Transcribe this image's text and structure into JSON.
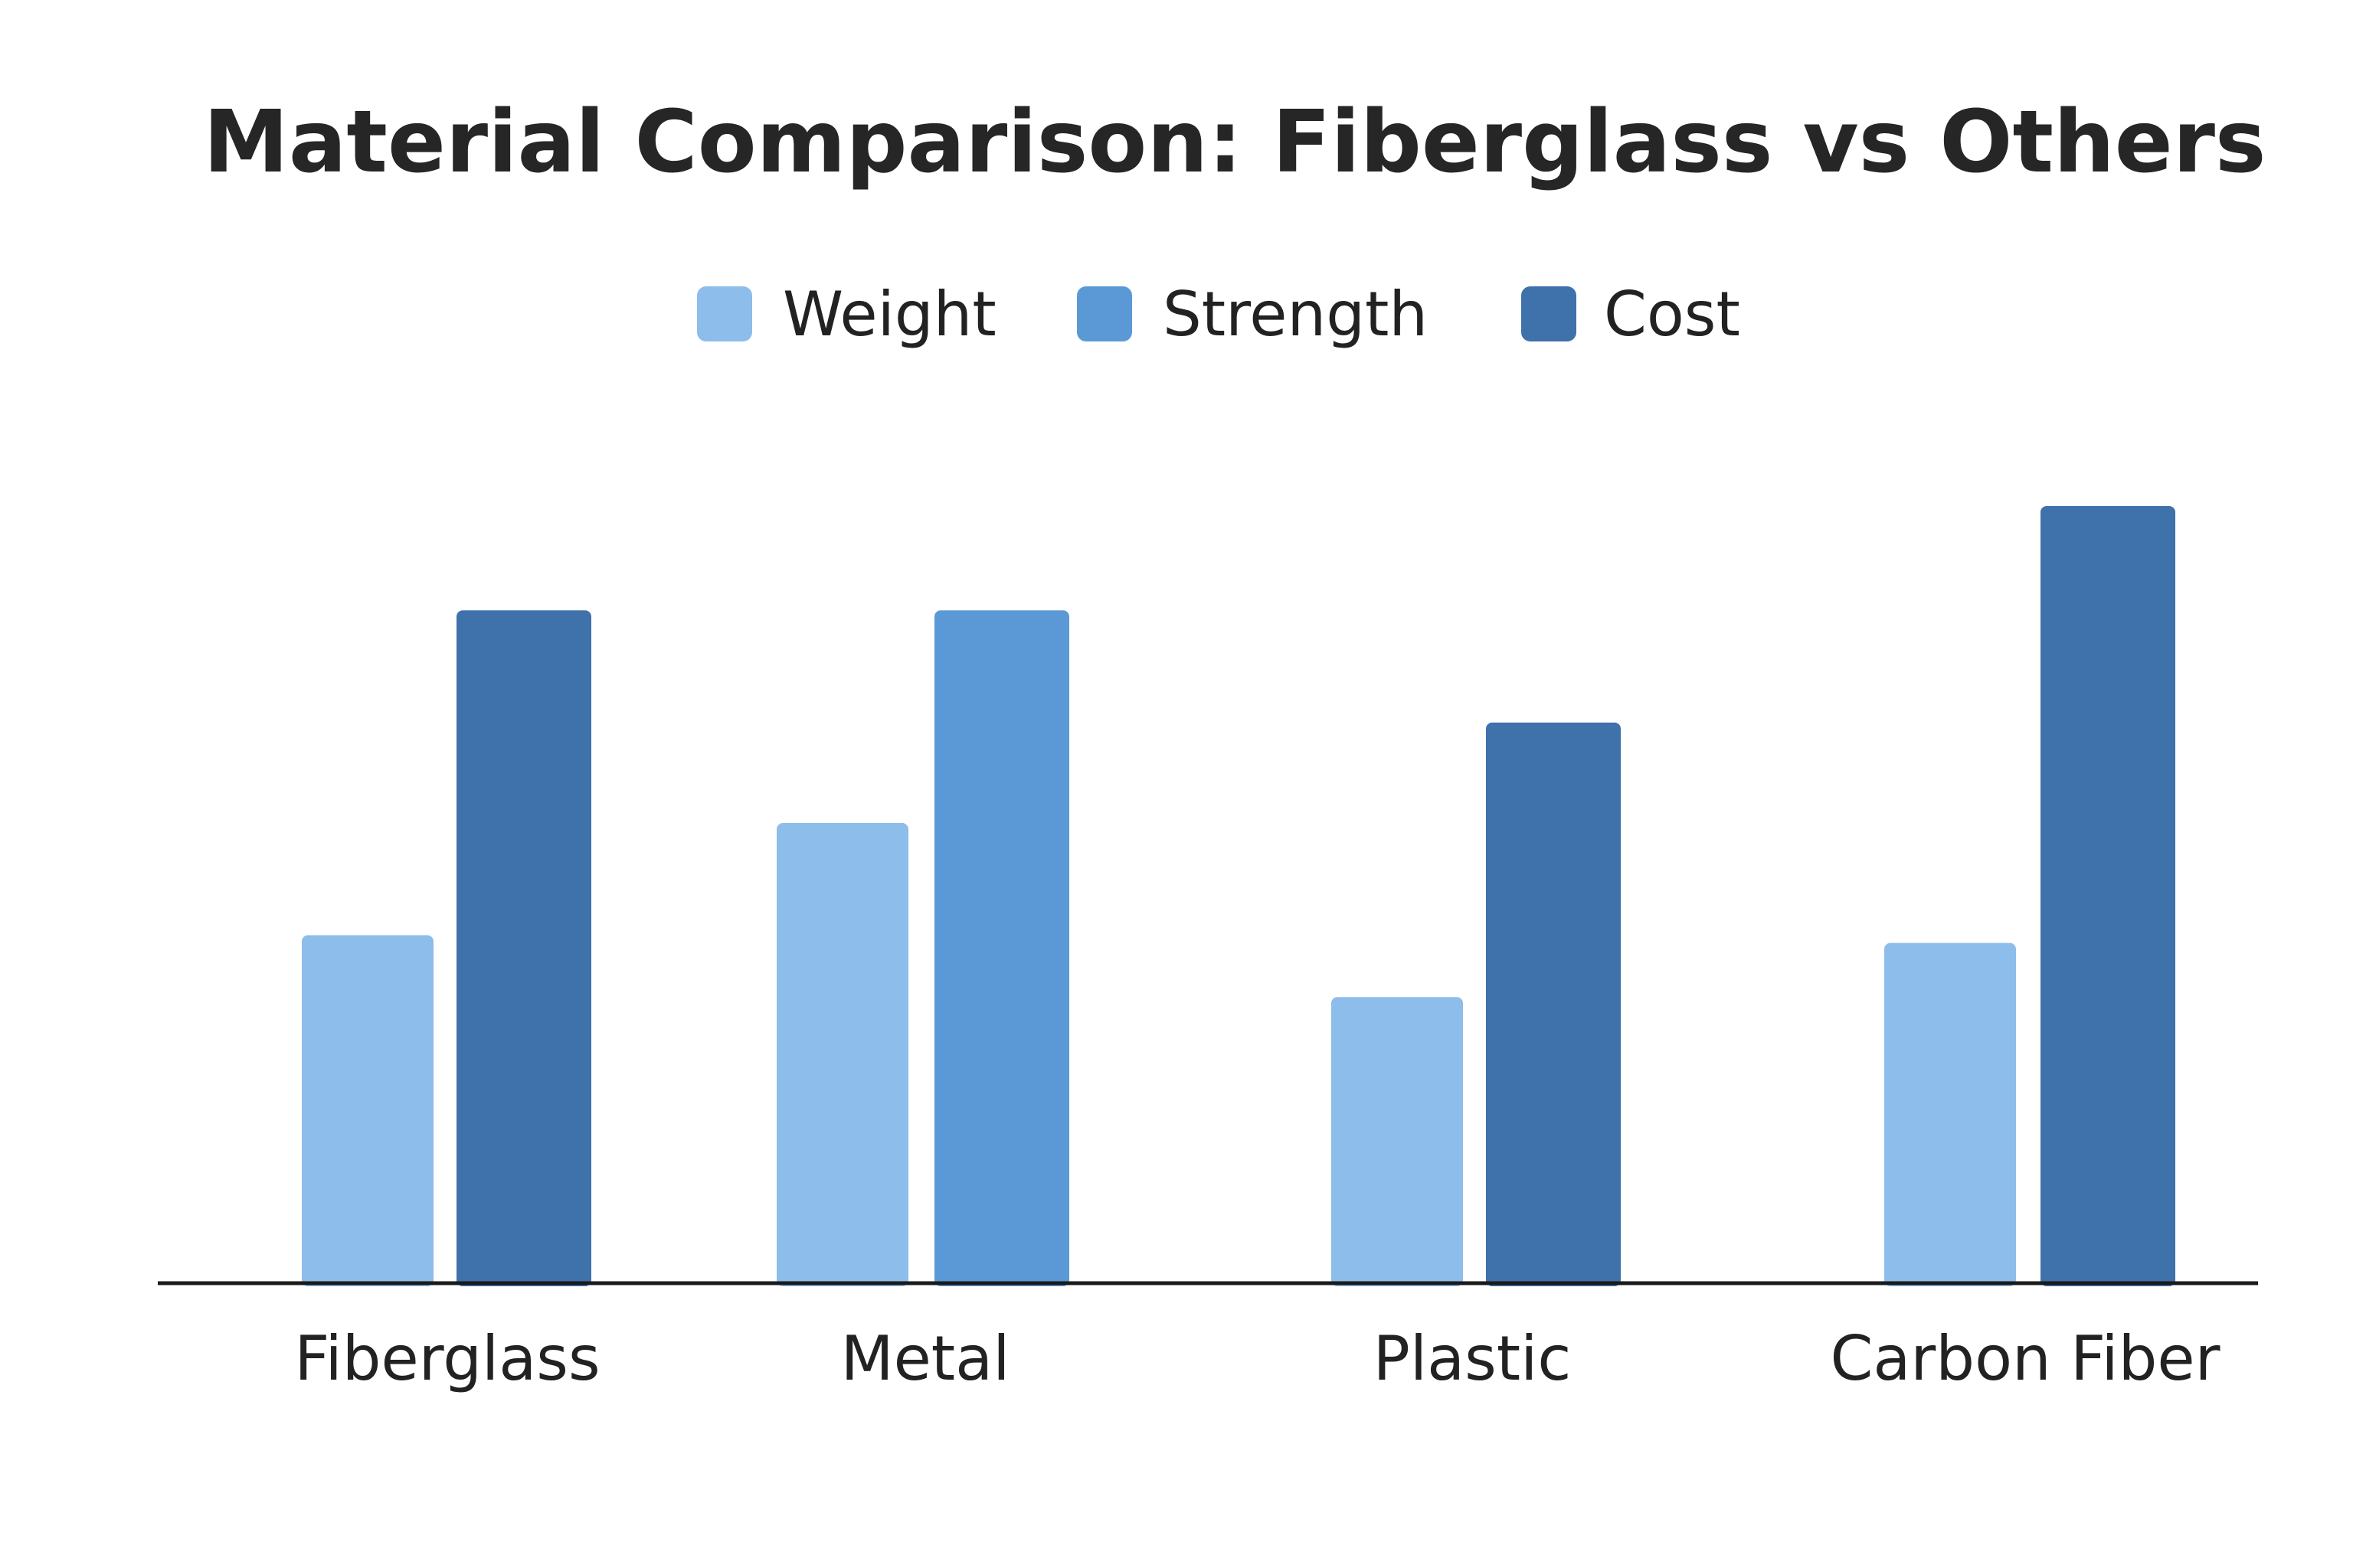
{
  "chart_data": {
    "type": "bar",
    "title": "Material Comparison: Fiberglass vs Others",
    "xlabel": "",
    "ylabel": "",
    "ylim": [
      0,
      100
    ],
    "grid": false,
    "axis_line": true,
    "legend_position": "top-center",
    "categories": [
      "Fiberglass",
      "Metal",
      "Plastic",
      "Carbon Fiber"
    ],
    "series": [
      {
        "name": "Weight",
        "color": "#8dbdea"
      },
      {
        "name": "Strength",
        "color": "#5b99d6"
      },
      {
        "name": "Cost",
        "color": "#3f71aa"
      }
    ],
    "bars": [
      {
        "category": "Fiberglass",
        "series": "Weight",
        "value": 45
      },
      {
        "category": "Fiberglass",
        "series": "Cost",
        "value": 87
      },
      {
        "category": "Metal",
        "series": "Weight",
        "value": 59.5
      },
      {
        "category": "Metal",
        "series": "Strength",
        "value": 87
      },
      {
        "category": "Plastic",
        "series": "Weight",
        "value": 37
      },
      {
        "category": "Plastic",
        "series": "Cost",
        "value": 72.5
      },
      {
        "category": "Carbon Fiber",
        "series": "Weight",
        "value": 44
      },
      {
        "category": "Carbon Fiber",
        "series": "Cost",
        "value": 100.5
      }
    ]
  }
}
